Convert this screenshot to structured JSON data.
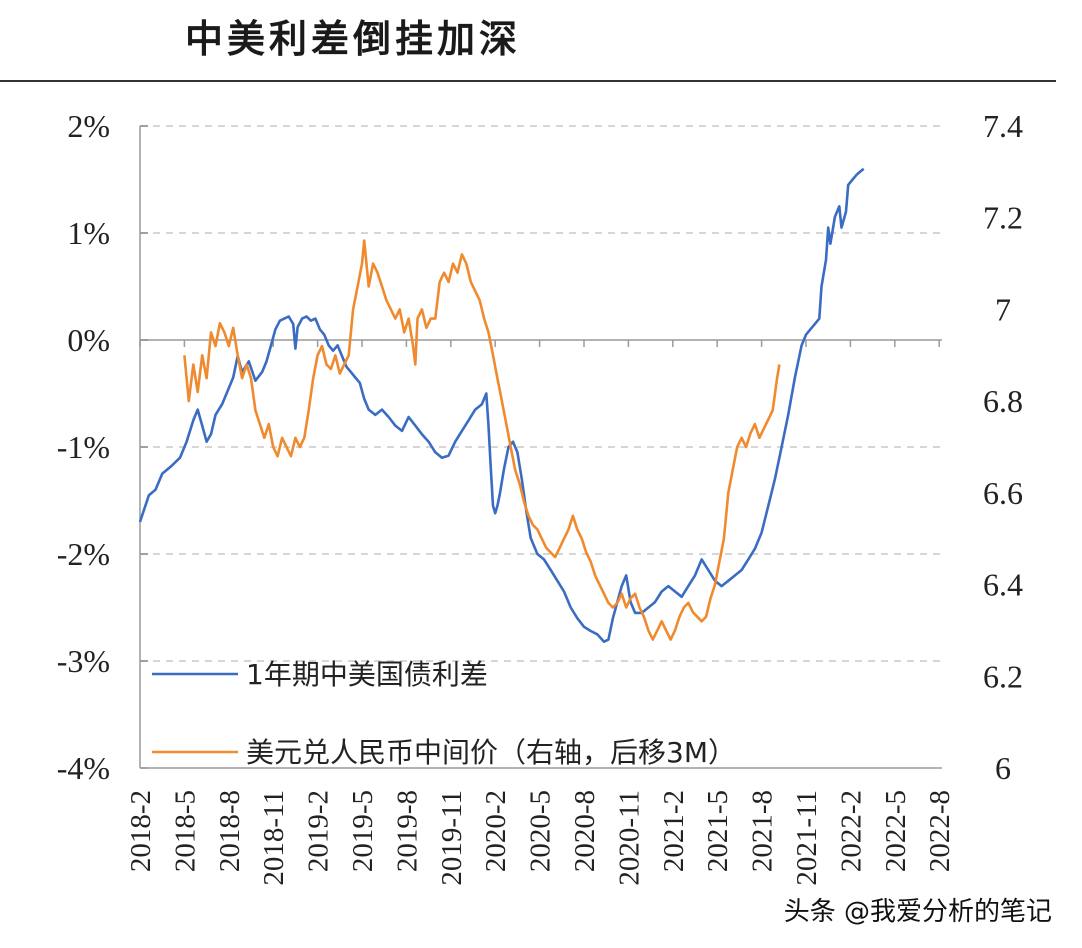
{
  "title": "中美利差倒挂加深",
  "watermark": "头条 @我爱分析的笔记",
  "chart_data": {
    "type": "line",
    "left_axis": {
      "ticks": [
        "2%",
        "1%",
        "0%",
        "-1%",
        "-2%",
        "-3%",
        "-4%"
      ],
      "range": [
        -4,
        2
      ]
    },
    "right_axis": {
      "ticks": [
        "7.4",
        "7.2",
        "7",
        "6.8",
        "6.6",
        "6.4",
        "6.2",
        "6"
      ],
      "range": [
        6.0,
        7.4
      ]
    },
    "x_ticks": [
      "2018-2",
      "2018-5",
      "2018-8",
      "2018-11",
      "2019-2",
      "2019-5",
      "2019-8",
      "2019-11",
      "2020-2",
      "2020-5",
      "2020-8",
      "2020-11",
      "2021-2",
      "2021-5",
      "2021-8",
      "2021-11",
      "2022-2",
      "2022-5",
      "2022-8"
    ],
    "grid": true,
    "series": [
      {
        "name": "1年期中美国债利差",
        "axis": "left",
        "color": "#3b6cc4",
        "points": [
          [
            0,
            -1.7
          ],
          [
            0.2,
            -1.45
          ],
          [
            0.35,
            -1.4
          ],
          [
            0.5,
            -1.25
          ],
          [
            0.7,
            -1.18
          ],
          [
            0.9,
            -1.1
          ],
          [
            1.05,
            -0.95
          ],
          [
            1.2,
            -0.75
          ],
          [
            1.3,
            -0.65
          ],
          [
            1.4,
            -0.8
          ],
          [
            1.5,
            -0.95
          ],
          [
            1.6,
            -0.88
          ],
          [
            1.7,
            -0.7
          ],
          [
            1.85,
            -0.6
          ],
          [
            2.0,
            -0.45
          ],
          [
            2.1,
            -0.35
          ],
          [
            2.2,
            -0.15
          ],
          [
            2.3,
            -0.3
          ],
          [
            2.45,
            -0.2
          ],
          [
            2.6,
            -0.38
          ],
          [
            2.75,
            -0.3
          ],
          [
            2.85,
            -0.2
          ],
          [
            2.95,
            -0.05
          ],
          [
            3.05,
            0.1
          ],
          [
            3.15,
            0.18
          ],
          [
            3.25,
            0.2
          ],
          [
            3.35,
            0.22
          ],
          [
            3.45,
            0.15
          ],
          [
            3.5,
            -0.08
          ],
          [
            3.55,
            0.12
          ],
          [
            3.65,
            0.2
          ],
          [
            3.75,
            0.22
          ],
          [
            3.85,
            0.18
          ],
          [
            3.95,
            0.2
          ],
          [
            4.05,
            0.1
          ],
          [
            4.15,
            0.05
          ],
          [
            4.25,
            -0.05
          ],
          [
            4.35,
            -0.1
          ],
          [
            4.45,
            -0.05
          ],
          [
            4.55,
            -0.15
          ],
          [
            4.65,
            -0.25
          ],
          [
            4.75,
            -0.3
          ],
          [
            4.85,
            -0.35
          ],
          [
            4.95,
            -0.4
          ],
          [
            5.05,
            -0.55
          ],
          [
            5.15,
            -0.65
          ],
          [
            5.3,
            -0.7
          ],
          [
            5.45,
            -0.65
          ],
          [
            5.6,
            -0.72
          ],
          [
            5.75,
            -0.8
          ],
          [
            5.9,
            -0.85
          ],
          [
            6.05,
            -0.72
          ],
          [
            6.2,
            -0.8
          ],
          [
            6.35,
            -0.88
          ],
          [
            6.5,
            -0.95
          ],
          [
            6.65,
            -1.05
          ],
          [
            6.8,
            -1.1
          ],
          [
            6.95,
            -1.08
          ],
          [
            7.1,
            -0.95
          ],
          [
            7.25,
            -0.85
          ],
          [
            7.4,
            -0.75
          ],
          [
            7.55,
            -0.65
          ],
          [
            7.7,
            -0.6
          ],
          [
            7.8,
            -0.5
          ],
          [
            7.85,
            -0.8
          ],
          [
            7.9,
            -1.2
          ],
          [
            7.95,
            -1.55
          ],
          [
            8.0,
            -1.62
          ],
          [
            8.05,
            -1.55
          ],
          [
            8.1,
            -1.45
          ],
          [
            8.2,
            -1.2
          ],
          [
            8.3,
            -1.0
          ],
          [
            8.4,
            -0.95
          ],
          [
            8.5,
            -1.05
          ],
          [
            8.6,
            -1.3
          ],
          [
            8.7,
            -1.6
          ],
          [
            8.8,
            -1.85
          ],
          [
            8.95,
            -2.0
          ],
          [
            9.1,
            -2.05
          ],
          [
            9.25,
            -2.15
          ],
          [
            9.4,
            -2.25
          ],
          [
            9.55,
            -2.35
          ],
          [
            9.7,
            -2.5
          ],
          [
            9.85,
            -2.6
          ],
          [
            10.0,
            -2.68
          ],
          [
            10.15,
            -2.72
          ],
          [
            10.3,
            -2.75
          ],
          [
            10.45,
            -2.82
          ],
          [
            10.55,
            -2.8
          ],
          [
            10.65,
            -2.6
          ],
          [
            10.75,
            -2.45
          ],
          [
            10.85,
            -2.3
          ],
          [
            10.95,
            -2.2
          ],
          [
            11.05,
            -2.45
          ],
          [
            11.15,
            -2.55
          ],
          [
            11.3,
            -2.55
          ],
          [
            11.45,
            -2.5
          ],
          [
            11.6,
            -2.45
          ],
          [
            11.75,
            -2.35
          ],
          [
            11.9,
            -2.3
          ],
          [
            12.05,
            -2.35
          ],
          [
            12.2,
            -2.4
          ],
          [
            12.35,
            -2.3
          ],
          [
            12.5,
            -2.2
          ],
          [
            12.65,
            -2.05
          ],
          [
            12.8,
            -2.15
          ],
          [
            12.95,
            -2.25
          ],
          [
            13.1,
            -2.3
          ],
          [
            13.25,
            -2.25
          ],
          [
            13.4,
            -2.2
          ],
          [
            13.55,
            -2.15
          ],
          [
            13.7,
            -2.05
          ],
          [
            13.85,
            -1.95
          ],
          [
            14.0,
            -1.8
          ],
          [
            14.15,
            -1.55
          ],
          [
            14.3,
            -1.3
          ],
          [
            14.45,
            -1.0
          ],
          [
            14.6,
            -0.7
          ],
          [
            14.75,
            -0.35
          ],
          [
            14.9,
            -0.05
          ],
          [
            15.0,
            0.05
          ],
          [
            15.1,
            0.1
          ],
          [
            15.2,
            0.15
          ],
          [
            15.3,
            0.2
          ],
          [
            15.35,
            0.5
          ],
          [
            15.45,
            0.75
          ],
          [
            15.5,
            1.05
          ],
          [
            15.55,
            0.9
          ],
          [
            15.65,
            1.15
          ],
          [
            15.75,
            1.25
          ],
          [
            15.8,
            1.05
          ],
          [
            15.9,
            1.2
          ],
          [
            15.95,
            1.45
          ],
          [
            16.05,
            1.5
          ],
          [
            16.15,
            1.55
          ],
          [
            16.3,
            1.6
          ]
        ]
      },
      {
        "name": "美元兑人民币中间价（右轴，后移3M）",
        "axis": "right",
        "color": "#f08a2e",
        "points": [
          [
            1.0,
            6.9
          ],
          [
            1.05,
            6.85
          ],
          [
            1.1,
            6.8
          ],
          [
            1.2,
            6.88
          ],
          [
            1.3,
            6.82
          ],
          [
            1.4,
            6.9
          ],
          [
            1.5,
            6.85
          ],
          [
            1.6,
            6.95
          ],
          [
            1.7,
            6.92
          ],
          [
            1.8,
            6.97
          ],
          [
            1.9,
            6.95
          ],
          [
            2.0,
            6.92
          ],
          [
            2.1,
            6.96
          ],
          [
            2.2,
            6.9
          ],
          [
            2.3,
            6.85
          ],
          [
            2.4,
            6.88
          ],
          [
            2.5,
            6.85
          ],
          [
            2.6,
            6.78
          ],
          [
            2.7,
            6.75
          ],
          [
            2.8,
            6.72
          ],
          [
            2.9,
            6.75
          ],
          [
            3.0,
            6.7
          ],
          [
            3.1,
            6.68
          ],
          [
            3.2,
            6.72
          ],
          [
            3.3,
            6.7
          ],
          [
            3.4,
            6.68
          ],
          [
            3.5,
            6.72
          ],
          [
            3.6,
            6.7
          ],
          [
            3.7,
            6.72
          ],
          [
            3.8,
            6.78
          ],
          [
            3.9,
            6.85
          ],
          [
            4.0,
            6.9
          ],
          [
            4.1,
            6.92
          ],
          [
            4.2,
            6.88
          ],
          [
            4.3,
            6.87
          ],
          [
            4.4,
            6.9
          ],
          [
            4.5,
            6.86
          ],
          [
            4.6,
            6.88
          ],
          [
            4.7,
            6.9
          ],
          [
            4.8,
            7.0
          ],
          [
            4.9,
            7.05
          ],
          [
            5.0,
            7.1
          ],
          [
            5.05,
            7.15
          ],
          [
            5.15,
            7.05
          ],
          [
            5.25,
            7.1
          ],
          [
            5.35,
            7.08
          ],
          [
            5.45,
            7.05
          ],
          [
            5.55,
            7.02
          ],
          [
            5.65,
            7.0
          ],
          [
            5.75,
            6.98
          ],
          [
            5.85,
            7.0
          ],
          [
            5.95,
            6.95
          ],
          [
            6.05,
            6.98
          ],
          [
            6.15,
            6.92
          ],
          [
            6.2,
            6.88
          ],
          [
            6.25,
            6.98
          ],
          [
            6.35,
            7.0
          ],
          [
            6.45,
            6.96
          ],
          [
            6.55,
            6.98
          ],
          [
            6.65,
            6.98
          ],
          [
            6.75,
            7.06
          ],
          [
            6.85,
            7.08
          ],
          [
            6.95,
            7.06
          ],
          [
            7.05,
            7.1
          ],
          [
            7.15,
            7.08
          ],
          [
            7.25,
            7.12
          ],
          [
            7.35,
            7.1
          ],
          [
            7.45,
            7.06
          ],
          [
            7.55,
            7.04
          ],
          [
            7.65,
            7.02
          ],
          [
            7.75,
            6.98
          ],
          [
            7.85,
            6.95
          ],
          [
            7.95,
            6.9
          ],
          [
            8.05,
            6.85
          ],
          [
            8.15,
            6.8
          ],
          [
            8.25,
            6.75
          ],
          [
            8.35,
            6.7
          ],
          [
            8.45,
            6.65
          ],
          [
            8.55,
            6.62
          ],
          [
            8.65,
            6.58
          ],
          [
            8.75,
            6.55
          ],
          [
            8.85,
            6.53
          ],
          [
            8.95,
            6.52
          ],
          [
            9.05,
            6.5
          ],
          [
            9.15,
            6.48
          ],
          [
            9.25,
            6.47
          ],
          [
            9.35,
            6.46
          ],
          [
            9.45,
            6.48
          ],
          [
            9.55,
            6.5
          ],
          [
            9.65,
            6.52
          ],
          [
            9.75,
            6.55
          ],
          [
            9.85,
            6.52
          ],
          [
            9.95,
            6.5
          ],
          [
            10.05,
            6.47
          ],
          [
            10.15,
            6.45
          ],
          [
            10.25,
            6.42
          ],
          [
            10.35,
            6.4
          ],
          [
            10.45,
            6.38
          ],
          [
            10.55,
            6.36
          ],
          [
            10.65,
            6.35
          ],
          [
            10.75,
            6.36
          ],
          [
            10.85,
            6.38
          ],
          [
            10.95,
            6.35
          ],
          [
            11.05,
            6.37
          ],
          [
            11.15,
            6.38
          ],
          [
            11.25,
            6.35
          ],
          [
            11.35,
            6.33
          ],
          [
            11.45,
            6.3
          ],
          [
            11.55,
            6.28
          ],
          [
            11.65,
            6.3
          ],
          [
            11.75,
            6.32
          ],
          [
            11.85,
            6.3
          ],
          [
            11.95,
            6.28
          ],
          [
            12.05,
            6.3
          ],
          [
            12.15,
            6.33
          ],
          [
            12.25,
            6.35
          ],
          [
            12.35,
            6.36
          ],
          [
            12.45,
            6.34
          ],
          [
            12.55,
            6.33
          ],
          [
            12.65,
            6.32
          ],
          [
            12.75,
            6.33
          ],
          [
            12.85,
            6.37
          ],
          [
            12.95,
            6.4
          ],
          [
            13.05,
            6.45
          ],
          [
            13.15,
            6.5
          ],
          [
            13.25,
            6.6
          ],
          [
            13.35,
            6.65
          ],
          [
            13.45,
            6.7
          ],
          [
            13.55,
            6.72
          ],
          [
            13.65,
            6.7
          ],
          [
            13.75,
            6.73
          ],
          [
            13.85,
            6.75
          ],
          [
            13.95,
            6.72
          ],
          [
            14.05,
            6.74
          ],
          [
            14.15,
            6.76
          ],
          [
            14.25,
            6.78
          ],
          [
            14.35,
            6.85
          ],
          [
            14.4,
            6.88
          ]
        ]
      }
    ]
  }
}
